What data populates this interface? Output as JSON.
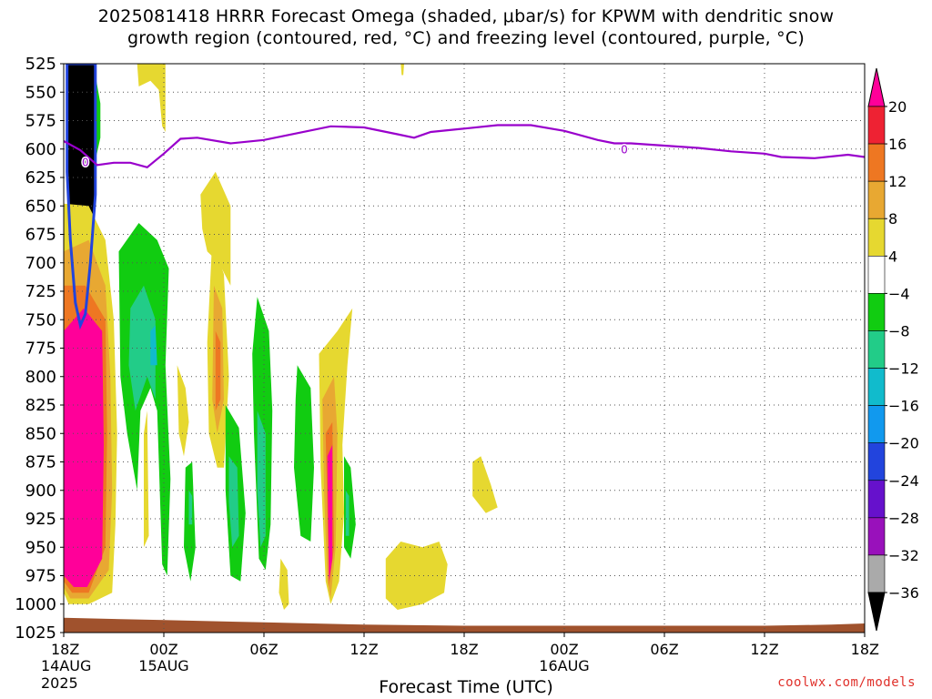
{
  "title": {
    "line1": "2025081418 HRRR Forecast Omega (shaded, μbar/s) for KPWM with dendritic snow",
    "line2": "growth region (contoured, red, °C) and freezing level (contoured, purple, °C)"
  },
  "watermark": "coolwx.com/models",
  "chart_data": {
    "type": "heatmap",
    "xlabel": "Forecast Time (UTC)",
    "x_ticks": [
      {
        "hour": 0,
        "label": "18Z",
        "sub": [
          "14AUG",
          "2025"
        ]
      },
      {
        "hour": 6,
        "label": "00Z",
        "sub": [
          "15AUG"
        ]
      },
      {
        "hour": 12,
        "label": "06Z",
        "sub": []
      },
      {
        "hour": 18,
        "label": "12Z",
        "sub": []
      },
      {
        "hour": 24,
        "label": "18Z",
        "sub": []
      },
      {
        "hour": 30,
        "label": "00Z",
        "sub": [
          "16AUG"
        ]
      },
      {
        "hour": 36,
        "label": "06Z",
        "sub": []
      },
      {
        "hour": 42,
        "label": "12Z",
        "sub": []
      },
      {
        "hour": 48,
        "label": "18Z",
        "sub": []
      }
    ],
    "y_ticks": [
      525,
      550,
      575,
      600,
      625,
      650,
      675,
      700,
      725,
      750,
      775,
      800,
      825,
      850,
      875,
      900,
      925,
      950,
      975,
      1000,
      1025
    ],
    "xlim": [
      0,
      48
    ],
    "ylim": [
      525,
      1025
    ],
    "grid": true,
    "colorbar": {
      "labels": [
        "20",
        "16",
        "12",
        "8",
        "4",
        "−4",
        "−8",
        "−12",
        "−16",
        "−20",
        "−24",
        "−28",
        "−32",
        "−36"
      ],
      "colors": [
        "#ff0099",
        "#ee2233",
        "#ee7722",
        "#e8a832",
        "#e6d830",
        "#ffffff",
        "#11cc11",
        "#22cc88",
        "#11bbcc",
        "#1199ee",
        "#2244dd",
        "#6611cc",
        "#9911bb",
        "#aaaaaa",
        "#000000"
      ]
    },
    "freezing_level": {
      "label": "0",
      "points": [
        [
          0,
          593
        ],
        [
          1,
          601
        ],
        [
          2,
          614
        ],
        [
          3,
          612
        ],
        [
          4,
          612
        ],
        [
          5,
          616
        ],
        [
          6,
          604
        ],
        [
          7,
          591
        ],
        [
          8,
          590
        ],
        [
          10,
          595
        ],
        [
          12,
          592
        ],
        [
          14,
          586
        ],
        [
          16,
          580
        ],
        [
          18,
          581
        ],
        [
          20,
          587
        ],
        [
          21,
          590
        ],
        [
          22,
          585
        ],
        [
          24,
          582
        ],
        [
          26,
          579
        ],
        [
          28,
          579
        ],
        [
          30,
          584
        ],
        [
          32,
          592
        ],
        [
          33,
          595
        ],
        [
          34,
          595
        ],
        [
          36,
          597
        ],
        [
          38,
          599
        ],
        [
          40,
          602
        ],
        [
          42,
          604
        ],
        [
          43,
          607
        ],
        [
          45,
          608
        ],
        [
          47,
          605
        ],
        [
          48,
          607
        ]
      ]
    },
    "omega_regions": [
      {
        "value": -36,
        "points": [
          [
            0.2,
            525
          ],
          [
            1.9,
            525
          ],
          [
            1.9,
            640
          ],
          [
            1.6,
            700
          ],
          [
            1.3,
            745
          ],
          [
            1.0,
            755
          ],
          [
            0.7,
            735
          ],
          [
            0.4,
            680
          ],
          [
            0.2,
            620
          ]
        ]
      },
      {
        "value": -8,
        "points": [
          [
            1.9,
            535
          ],
          [
            2.2,
            560
          ],
          [
            2.2,
            590
          ],
          [
            1.9,
            610
          ]
        ]
      },
      {
        "value": 4,
        "points": [
          [
            0,
            648
          ],
          [
            1.5,
            650
          ],
          [
            2.5,
            680
          ],
          [
            3.0,
            750
          ],
          [
            3.2,
            850
          ],
          [
            3.1,
            930
          ],
          [
            2.9,
            990
          ],
          [
            1.5,
            1000
          ],
          [
            0.3,
            1000
          ],
          [
            0,
            990
          ]
        ]
      },
      {
        "value": 8,
        "points": [
          [
            0,
            690
          ],
          [
            1.5,
            680
          ],
          [
            2.5,
            720
          ],
          [
            2.8,
            800
          ],
          [
            2.9,
            900
          ],
          [
            2.7,
            970
          ],
          [
            1.5,
            995
          ],
          [
            0.4,
            995
          ],
          [
            0,
            985
          ]
        ]
      },
      {
        "value": 12,
        "points": [
          [
            0,
            720
          ],
          [
            1.3,
            720
          ],
          [
            2.5,
            750
          ],
          [
            2.6,
            850
          ],
          [
            2.5,
            950
          ],
          [
            1.5,
            990
          ],
          [
            0.5,
            990
          ],
          [
            0,
            980
          ]
        ]
      },
      {
        "value": 20,
        "points": [
          [
            0,
            760
          ],
          [
            1.2,
            740
          ],
          [
            2.3,
            760
          ],
          [
            2.4,
            860
          ],
          [
            2.3,
            960
          ],
          [
            1.4,
            985
          ],
          [
            0.6,
            985
          ],
          [
            0,
            975
          ]
        ]
      },
      {
        "value": 4,
        "points": [
          [
            4.4,
            525
          ],
          [
            6.1,
            525
          ],
          [
            6.1,
            585
          ],
          [
            5.9,
            580
          ],
          [
            5.7,
            548
          ],
          [
            5.2,
            540
          ],
          [
            4.5,
            545
          ]
        ]
      },
      {
        "value": -8,
        "points": [
          [
            3.3,
            690
          ],
          [
            4.5,
            665
          ],
          [
            5.6,
            680
          ],
          [
            6.3,
            705
          ],
          [
            6.1,
            790
          ],
          [
            6.4,
            890
          ],
          [
            6.2,
            975
          ],
          [
            5.9,
            965
          ],
          [
            5.6,
            830
          ],
          [
            5.2,
            810
          ],
          [
            4.6,
            830
          ],
          [
            4.4,
            900
          ],
          [
            3.8,
            850
          ],
          [
            3.4,
            800
          ]
        ]
      },
      {
        "value": -12,
        "points": [
          [
            4.0,
            740
          ],
          [
            4.8,
            720
          ],
          [
            5.5,
            750
          ],
          [
            5.5,
            820
          ],
          [
            5.0,
            800
          ],
          [
            4.3,
            830
          ],
          [
            3.9,
            790
          ]
        ]
      },
      {
        "value": -16,
        "points": [
          [
            5.2,
            760
          ],
          [
            5.5,
            755
          ],
          [
            5.6,
            790
          ],
          [
            5.2,
            790
          ]
        ]
      },
      {
        "value": 4,
        "points": [
          [
            4.8,
            850
          ],
          [
            5.0,
            830
          ],
          [
            5.1,
            940
          ],
          [
            4.8,
            950
          ]
        ]
      },
      {
        "value": 4,
        "points": [
          [
            6.8,
            790
          ],
          [
            7.3,
            810
          ],
          [
            7.5,
            840
          ],
          [
            7.2,
            870
          ],
          [
            6.9,
            850
          ]
        ]
      },
      {
        "value": 4,
        "points": [
          [
            8.9,
            680
          ],
          [
            9.6,
            710
          ],
          [
            9.9,
            800
          ],
          [
            9.6,
            880
          ],
          [
            9.2,
            880
          ],
          [
            8.7,
            850
          ],
          [
            8.6,
            770
          ]
        ]
      },
      {
        "value": 8,
        "points": [
          [
            9.0,
            720
          ],
          [
            9.5,
            740
          ],
          [
            9.6,
            820
          ],
          [
            9.2,
            850
          ],
          [
            8.9,
            820
          ]
        ]
      },
      {
        "value": 12,
        "points": [
          [
            9.1,
            760
          ],
          [
            9.4,
            770
          ],
          [
            9.4,
            820
          ],
          [
            9.1,
            830
          ]
        ]
      },
      {
        "value": 4,
        "points": [
          [
            8.2,
            640
          ],
          [
            9.1,
            620
          ],
          [
            10.0,
            650
          ],
          [
            10.0,
            720
          ],
          [
            9.3,
            700
          ],
          [
            8.6,
            690
          ],
          [
            8.3,
            670
          ]
        ]
      },
      {
        "value": -8,
        "points": [
          [
            7.3,
            880
          ],
          [
            7.7,
            875
          ],
          [
            7.9,
            950
          ],
          [
            7.6,
            980
          ],
          [
            7.2,
            950
          ]
        ]
      },
      {
        "value": -12,
        "points": [
          [
            7.5,
            900
          ],
          [
            7.7,
            905
          ],
          [
            7.7,
            930
          ],
          [
            7.5,
            930
          ]
        ]
      },
      {
        "value": -8,
        "points": [
          [
            9.7,
            825
          ],
          [
            10.5,
            845
          ],
          [
            10.9,
            920
          ],
          [
            10.6,
            980
          ],
          [
            10.0,
            975
          ],
          [
            9.7,
            900
          ]
        ]
      },
      {
        "value": -12,
        "points": [
          [
            9.9,
            870
          ],
          [
            10.4,
            880
          ],
          [
            10.5,
            940
          ],
          [
            10.1,
            950
          ],
          [
            9.9,
            910
          ]
        ]
      },
      {
        "value": -8,
        "points": [
          [
            11.6,
            730
          ],
          [
            12.3,
            760
          ],
          [
            12.5,
            830
          ],
          [
            12.4,
            930
          ],
          [
            12.1,
            970
          ],
          [
            11.7,
            960
          ],
          [
            11.4,
            850
          ],
          [
            11.3,
            780
          ]
        ]
      },
      {
        "value": -12,
        "points": [
          [
            11.6,
            830
          ],
          [
            12.1,
            850
          ],
          [
            12.1,
            940
          ],
          [
            11.8,
            950
          ],
          [
            11.6,
            900
          ]
        ]
      },
      {
        "value": 4,
        "points": [
          [
            13.0,
            960
          ],
          [
            13.4,
            970
          ],
          [
            13.5,
            1000
          ],
          [
            13.2,
            1005
          ],
          [
            12.9,
            990
          ]
        ]
      },
      {
        "value": -8,
        "points": [
          [
            14.0,
            790
          ],
          [
            14.8,
            810
          ],
          [
            15.0,
            880
          ],
          [
            14.8,
            945
          ],
          [
            14.2,
            940
          ],
          [
            13.8,
            880
          ],
          [
            13.9,
            820
          ]
        ]
      },
      {
        "value": 4,
        "points": [
          [
            15.3,
            780
          ],
          [
            16.4,
            760
          ],
          [
            17.3,
            740
          ],
          [
            17.0,
            790
          ],
          [
            16.7,
            860
          ],
          [
            16.8,
            920
          ],
          [
            16.5,
            980
          ],
          [
            16.0,
            1000
          ],
          [
            15.7,
            980
          ],
          [
            15.4,
            880
          ]
        ]
      },
      {
        "value": 8,
        "points": [
          [
            15.5,
            820
          ],
          [
            16.2,
            800
          ],
          [
            16.4,
            850
          ],
          [
            16.3,
            950
          ],
          [
            16.0,
            995
          ],
          [
            15.8,
            980
          ],
          [
            15.6,
            900
          ]
        ]
      },
      {
        "value": 12,
        "points": [
          [
            15.7,
            850
          ],
          [
            16.1,
            840
          ],
          [
            16.2,
            950
          ],
          [
            15.9,
            985
          ],
          [
            15.8,
            920
          ]
        ]
      },
      {
        "value": 20,
        "points": [
          [
            15.8,
            870
          ],
          [
            16.1,
            860
          ],
          [
            16.1,
            960
          ],
          [
            15.9,
            980
          ],
          [
            15.85,
            930
          ]
        ]
      },
      {
        "value": -8,
        "points": [
          [
            16.8,
            870
          ],
          [
            17.2,
            880
          ],
          [
            17.5,
            930
          ],
          [
            17.2,
            960
          ],
          [
            16.8,
            950
          ]
        ]
      },
      {
        "value": -12,
        "points": [
          [
            16.9,
            900
          ],
          [
            17.1,
            905
          ],
          [
            17.1,
            940
          ],
          [
            16.9,
            940
          ]
        ]
      },
      {
        "value": 4,
        "points": [
          [
            19.3,
            960
          ],
          [
            20.2,
            945
          ],
          [
            21.5,
            950
          ],
          [
            22.5,
            945
          ],
          [
            23.0,
            965
          ],
          [
            22.8,
            990
          ],
          [
            21.5,
            1000
          ],
          [
            20.0,
            1005
          ],
          [
            19.3,
            995
          ]
        ]
      },
      {
        "value": 4,
        "points": [
          [
            24.5,
            875
          ],
          [
            25.0,
            870
          ],
          [
            25.6,
            895
          ],
          [
            26.0,
            915
          ],
          [
            25.3,
            920
          ],
          [
            24.5,
            905
          ]
        ]
      },
      {
        "value": 4,
        "points": [
          [
            20.2,
            525
          ],
          [
            20.4,
            525
          ],
          [
            20.35,
            535
          ],
          [
            20.25,
            535
          ]
        ]
      }
    ],
    "ground": {
      "points": [
        [
          0,
          1012
        ],
        [
          6,
          1014
        ],
        [
          12,
          1016
        ],
        [
          18,
          1018
        ],
        [
          24,
          1019
        ],
        [
          30,
          1019
        ],
        [
          36,
          1019
        ],
        [
          42,
          1019
        ],
        [
          46,
          1018
        ],
        [
          48,
          1017
        ]
      ]
    }
  }
}
